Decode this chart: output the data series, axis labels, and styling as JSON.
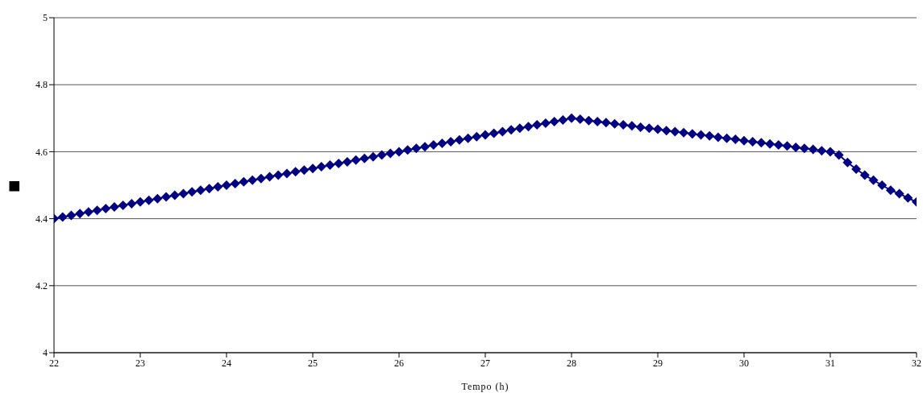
{
  "chart_data": {
    "type": "line",
    "xlabel": "Tempo (h)",
    "ylabel": "■",
    "xlim": [
      22,
      32
    ],
    "xticks": [
      22,
      23,
      24,
      25,
      26,
      27,
      28,
      29,
      30,
      31,
      32
    ],
    "ylim": [
      4,
      5
    ],
    "yticks": [
      4,
      4.2,
      4.4,
      4.6,
      4.8,
      5
    ],
    "grid": "y",
    "marker": "diamond",
    "line_style": "solid",
    "series": [
      {
        "color": "#000080",
        "x": [
          22,
          22.1,
          22.2,
          22.3,
          22.4,
          22.5,
          22.6,
          22.7,
          22.8,
          22.9,
          23,
          23.1,
          23.2,
          23.3,
          23.4,
          23.5,
          23.6,
          23.7,
          23.8,
          23.9,
          24,
          24.1,
          24.2,
          24.3,
          24.4,
          24.5,
          24.6,
          24.7,
          24.8,
          24.9,
          25,
          25.1,
          25.2,
          25.3,
          25.4,
          25.5,
          25.6,
          25.7,
          25.8,
          25.9,
          26,
          26.1,
          26.2,
          26.3,
          26.4,
          26.5,
          26.6,
          26.7,
          26.8,
          26.9,
          27,
          27.1,
          27.2,
          27.3,
          27.4,
          27.5,
          27.6,
          27.7,
          27.8,
          27.9,
          28,
          28.1,
          28.2,
          28.3,
          28.4,
          28.5,
          28.6,
          28.7,
          28.8,
          28.9,
          29,
          29.1,
          29.2,
          29.3,
          29.4,
          29.5,
          29.6,
          29.7,
          29.8,
          29.9,
          30,
          30.1,
          30.2,
          30.3,
          30.4,
          30.5,
          30.6,
          30.7,
          30.8,
          30.9,
          31,
          31.1,
          31.2,
          31.3,
          31.4,
          31.5,
          31.6,
          31.7,
          31.8,
          31.9,
          32
        ],
        "values": [
          4.4,
          4.405,
          4.41,
          4.415,
          4.42,
          4.425,
          4.43,
          4.435,
          4.44,
          4.445,
          4.45,
          4.455,
          4.46,
          4.465,
          4.47,
          4.475,
          4.48,
          4.485,
          4.49,
          4.495,
          4.5,
          4.505,
          4.51,
          4.515,
          4.52,
          4.525,
          4.53,
          4.535,
          4.54,
          4.545,
          4.55,
          4.555,
          4.56,
          4.565,
          4.57,
          4.575,
          4.58,
          4.585,
          4.59,
          4.595,
          4.6,
          4.605,
          4.61,
          4.615,
          4.62,
          4.625,
          4.63,
          4.635,
          4.64,
          4.645,
          4.65,
          4.655,
          4.66,
          4.665,
          4.67,
          4.675,
          4.68,
          4.685,
          4.69,
          4.695,
          4.7,
          4.697,
          4.693,
          4.69,
          4.687,
          4.683,
          4.68,
          4.677,
          4.673,
          4.67,
          4.667,
          4.663,
          4.66,
          4.657,
          4.653,
          4.65,
          4.647,
          4.643,
          4.64,
          4.637,
          4.633,
          4.63,
          4.627,
          4.623,
          4.62,
          4.617,
          4.613,
          4.61,
          4.607,
          4.603,
          4.6,
          4.59,
          4.568,
          4.548,
          4.53,
          4.515,
          4.5,
          4.485,
          4.475,
          4.462,
          4.45
        ]
      }
    ]
  }
}
